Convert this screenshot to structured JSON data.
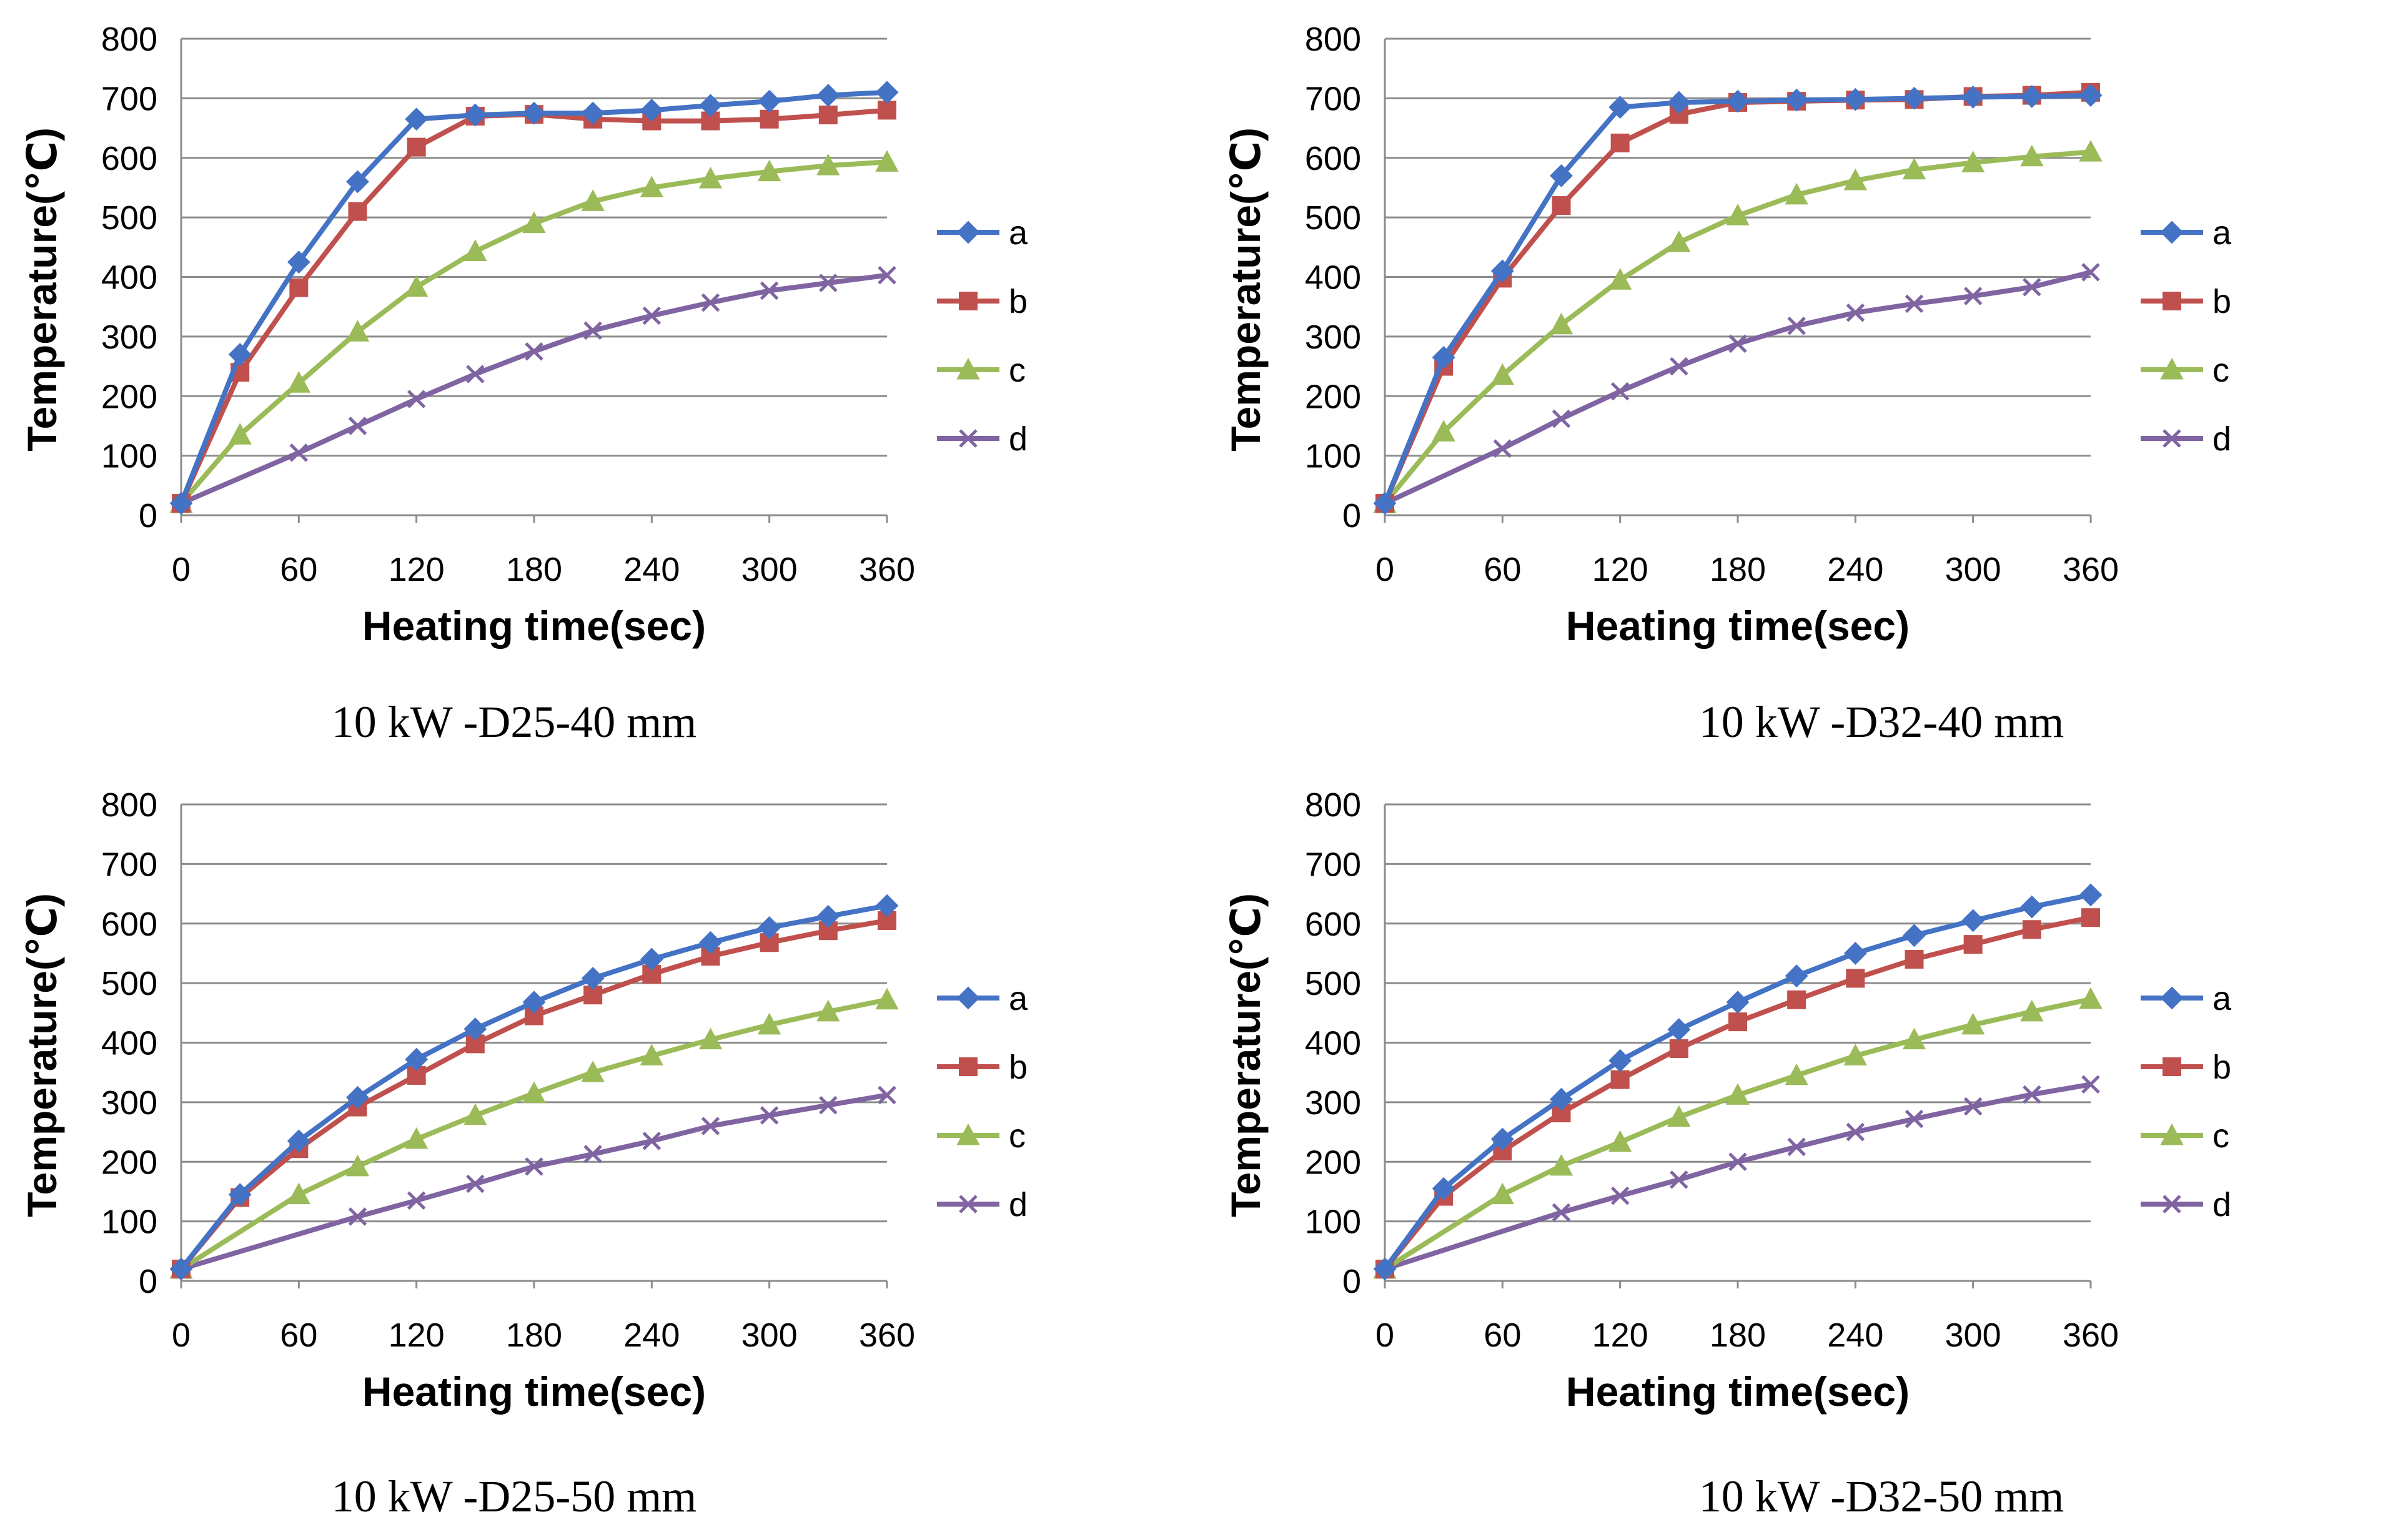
{
  "chart_data": [
    {
      "type": "line",
      "title": "10 kW -D25-40 mm",
      "xlabel": "Heating time(sec)",
      "ylabel": "Temperature(℃)",
      "xlim": [
        0,
        360
      ],
      "ylim": [
        0,
        800
      ],
      "xticks": [
        "0",
        "60",
        "120",
        "180",
        "240",
        "300",
        "360"
      ],
      "yticks": [
        "0",
        "100",
        "200",
        "300",
        "400",
        "500",
        "600",
        "700",
        "800"
      ],
      "grid": true,
      "legend_position": "right",
      "series": [
        {
          "name": "a",
          "color": "#4472C4",
          "marker": "diamond",
          "x": [
            0,
            30,
            60,
            90,
            120,
            150,
            180,
            210,
            240,
            270,
            300,
            330,
            360
          ],
          "values": [
            20,
            270,
            425,
            560,
            665,
            672,
            675,
            675,
            680,
            688,
            695,
            705,
            710
          ]
        },
        {
          "name": "b",
          "color": "#C0504D",
          "marker": "square",
          "x": [
            0,
            30,
            60,
            90,
            120,
            150,
            180,
            210,
            240,
            270,
            300,
            330,
            360
          ],
          "values": [
            20,
            240,
            382,
            510,
            618,
            670,
            673,
            665,
            662,
            662,
            665,
            672,
            680
          ]
        },
        {
          "name": "c",
          "color": "#9BBB59",
          "marker": "triangle",
          "x": [
            0,
            30,
            60,
            90,
            120,
            150,
            180,
            210,
            240,
            270,
            300,
            330,
            360
          ],
          "values": [
            20,
            135,
            222,
            308,
            383,
            443,
            490,
            527,
            550,
            565,
            577,
            587,
            593
          ]
        },
        {
          "name": "d",
          "color": "#8064A2",
          "marker": "x",
          "x": [
            0,
            60,
            90,
            120,
            150,
            180,
            210,
            240,
            270,
            300,
            330,
            360
          ],
          "values": [
            20,
            105,
            150,
            195,
            237,
            275,
            310,
            335,
            357,
            377,
            390,
            403
          ]
        }
      ]
    },
    {
      "type": "line",
      "title": "10 kW -D32-40 mm",
      "xlabel": "Heating time(sec)",
      "ylabel": "Temperature(℃)",
      "xlim": [
        0,
        360
      ],
      "ylim": [
        0,
        800
      ],
      "xticks": [
        "0",
        "60",
        "120",
        "180",
        "240",
        "300",
        "360"
      ],
      "yticks": [
        "0",
        "100",
        "200",
        "300",
        "400",
        "500",
        "600",
        "700",
        "800"
      ],
      "grid": true,
      "legend_position": "right",
      "series": [
        {
          "name": "a",
          "color": "#4472C4",
          "marker": "diamond",
          "x": [
            0,
            30,
            60,
            90,
            120,
            150,
            180,
            210,
            240,
            270,
            300,
            330,
            360
          ],
          "values": [
            20,
            265,
            410,
            570,
            685,
            693,
            695,
            697,
            698,
            700,
            702,
            703,
            705
          ]
        },
        {
          "name": "b",
          "color": "#C0504D",
          "marker": "square",
          "x": [
            0,
            30,
            60,
            90,
            120,
            150,
            180,
            210,
            240,
            270,
            300,
            330,
            360
          ],
          "values": [
            20,
            250,
            398,
            520,
            625,
            673,
            693,
            695,
            697,
            698,
            703,
            705,
            710
          ]
        },
        {
          "name": "c",
          "color": "#9BBB59",
          "marker": "triangle",
          "x": [
            0,
            30,
            60,
            90,
            120,
            150,
            180,
            210,
            240,
            270,
            300,
            330,
            360
          ],
          "values": [
            20,
            140,
            235,
            320,
            395,
            458,
            503,
            538,
            562,
            580,
            592,
            602,
            610
          ]
        },
        {
          "name": "d",
          "color": "#8064A2",
          "marker": "x",
          "x": [
            0,
            60,
            90,
            120,
            150,
            180,
            210,
            240,
            270,
            300,
            330,
            360
          ],
          "values": [
            20,
            112,
            162,
            208,
            250,
            288,
            318,
            340,
            355,
            368,
            383,
            408
          ]
        }
      ]
    },
    {
      "type": "line",
      "title": "10 kW -D25-50 mm",
      "xlabel": "Heating time(sec)",
      "ylabel": "Temperature(℃)",
      "xlim": [
        0,
        360
      ],
      "ylim": [
        0,
        800
      ],
      "xticks": [
        "0",
        "60",
        "120",
        "180",
        "240",
        "300",
        "360"
      ],
      "yticks": [
        "0",
        "100",
        "200",
        "300",
        "400",
        "500",
        "600",
        "700",
        "800"
      ],
      "grid": true,
      "legend_position": "right",
      "series": [
        {
          "name": "a",
          "color": "#4472C4",
          "marker": "diamond",
          "x": [
            0,
            30,
            60,
            90,
            120,
            150,
            180,
            210,
            240,
            270,
            300,
            330,
            360
          ],
          "values": [
            20,
            145,
            235,
            308,
            372,
            423,
            468,
            508,
            540,
            568,
            593,
            612,
            630
          ]
        },
        {
          "name": "b",
          "color": "#C0504D",
          "marker": "square",
          "x": [
            0,
            30,
            60,
            90,
            120,
            150,
            180,
            210,
            240,
            270,
            300,
            330,
            360
          ],
          "values": [
            20,
            140,
            222,
            292,
            345,
            398,
            445,
            480,
            515,
            545,
            568,
            588,
            605
          ]
        },
        {
          "name": "c",
          "color": "#9BBB59",
          "marker": "triangle",
          "x": [
            0,
            60,
            90,
            120,
            150,
            180,
            210,
            240,
            270,
            300,
            330,
            360
          ],
          "values": [
            20,
            145,
            192,
            238,
            278,
            315,
            350,
            378,
            405,
            430,
            452,
            472
          ]
        },
        {
          "name": "d",
          "color": "#8064A2",
          "marker": "x",
          "x": [
            0,
            90,
            120,
            150,
            180,
            210,
            240,
            270,
            300,
            330,
            360
          ],
          "values": [
            20,
            108,
            135,
            163,
            192,
            213,
            235,
            260,
            278,
            295,
            312
          ]
        }
      ]
    },
    {
      "type": "line",
      "title": "10 kW -D32-50 mm",
      "xlabel": "Heating time(sec)",
      "ylabel": "Temperature(℃)",
      "xlim": [
        0,
        360
      ],
      "ylim": [
        0,
        800
      ],
      "xticks": [
        "0",
        "60",
        "120",
        "180",
        "240",
        "300",
        "360"
      ],
      "yticks": [
        "0",
        "100",
        "200",
        "300",
        "400",
        "500",
        "600",
        "700",
        "800"
      ],
      "grid": true,
      "legend_position": "right",
      "series": [
        {
          "name": "a",
          "color": "#4472C4",
          "marker": "diamond",
          "x": [
            0,
            30,
            60,
            90,
            120,
            150,
            180,
            210,
            240,
            270,
            300,
            330,
            360
          ],
          "values": [
            20,
            155,
            238,
            305,
            370,
            422,
            468,
            512,
            550,
            580,
            605,
            628,
            648
          ]
        },
        {
          "name": "b",
          "color": "#C0504D",
          "marker": "square",
          "x": [
            0,
            30,
            60,
            90,
            120,
            150,
            180,
            210,
            240,
            270,
            300,
            330,
            360
          ],
          "values": [
            20,
            142,
            218,
            282,
            338,
            390,
            435,
            472,
            508,
            540,
            565,
            590,
            610
          ]
        },
        {
          "name": "c",
          "color": "#9BBB59",
          "marker": "triangle",
          "x": [
            0,
            60,
            90,
            120,
            150,
            180,
            210,
            240,
            270,
            300,
            330,
            360
          ],
          "values": [
            20,
            145,
            193,
            233,
            275,
            312,
            345,
            378,
            405,
            430,
            452,
            473
          ]
        },
        {
          "name": "d",
          "color": "#8064A2",
          "marker": "x",
          "x": [
            0,
            90,
            120,
            150,
            180,
            210,
            240,
            270,
            300,
            330,
            360
          ],
          "values": [
            20,
            115,
            143,
            170,
            200,
            225,
            250,
            272,
            293,
            313,
            330
          ]
        }
      ]
    }
  ]
}
